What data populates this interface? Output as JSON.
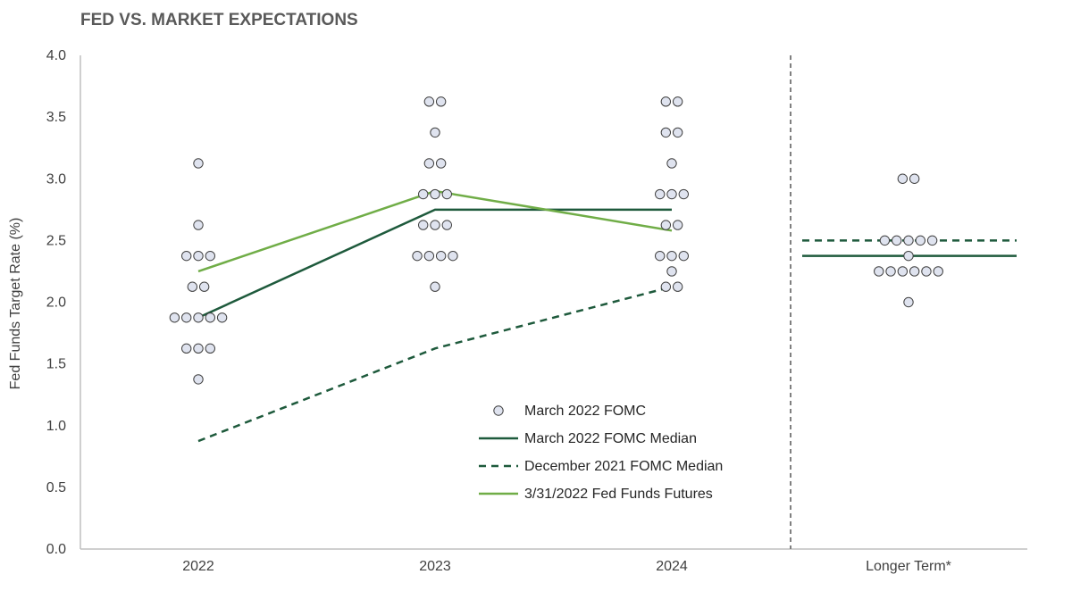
{
  "chart_data": {
    "type": "scatter",
    "title": "FED VS. MARKET EXPECTATIONS",
    "ylabel": "Fed Funds Target Rate (%)",
    "ylim": [
      0,
      4
    ],
    "yticks": [
      "0.0",
      "0.5",
      "1.0",
      "1.5",
      "2.0",
      "2.5",
      "3.0",
      "3.5",
      "4.0"
    ],
    "categories": [
      "2022",
      "2023",
      "2024",
      "Longer Term*"
    ],
    "grid": false,
    "legend": "inside-center",
    "dots": {
      "name": "March 2022 FOMC",
      "points": [
        {
          "x": "2022",
          "offset": 0,
          "y": 3.125
        },
        {
          "x": "2022",
          "offset": 0,
          "y": 2.625
        },
        {
          "x": "2022",
          "offset": -2,
          "y": 2.375
        },
        {
          "x": "2022",
          "offset": 0,
          "y": 2.375
        },
        {
          "x": "2022",
          "offset": 2,
          "y": 2.375
        },
        {
          "x": "2022",
          "offset": -1,
          "y": 2.125
        },
        {
          "x": "2022",
          "offset": 1,
          "y": 2.125
        },
        {
          "x": "2022",
          "offset": -4,
          "y": 1.875
        },
        {
          "x": "2022",
          "offset": -2,
          "y": 1.875
        },
        {
          "x": "2022",
          "offset": 0,
          "y": 1.875
        },
        {
          "x": "2022",
          "offset": 2,
          "y": 1.875
        },
        {
          "x": "2022",
          "offset": 4,
          "y": 1.875
        },
        {
          "x": "2022",
          "offset": -2,
          "y": 1.625
        },
        {
          "x": "2022",
          "offset": 0,
          "y": 1.625
        },
        {
          "x": "2022",
          "offset": 2,
          "y": 1.625
        },
        {
          "x": "2022",
          "offset": 0,
          "y": 1.375
        },
        {
          "x": "2023",
          "offset": -1,
          "y": 3.625
        },
        {
          "x": "2023",
          "offset": 1,
          "y": 3.625
        },
        {
          "x": "2023",
          "offset": 0,
          "y": 3.375
        },
        {
          "x": "2023",
          "offset": -1,
          "y": 3.125
        },
        {
          "x": "2023",
          "offset": 1,
          "y": 3.125
        },
        {
          "x": "2023",
          "offset": -2,
          "y": 2.875
        },
        {
          "x": "2023",
          "offset": 0,
          "y": 2.875
        },
        {
          "x": "2023",
          "offset": 2,
          "y": 2.875
        },
        {
          "x": "2023",
          "offset": -2,
          "y": 2.625
        },
        {
          "x": "2023",
          "offset": 0,
          "y": 2.625
        },
        {
          "x": "2023",
          "offset": 2,
          "y": 2.625
        },
        {
          "x": "2023",
          "offset": -3,
          "y": 2.375
        },
        {
          "x": "2023",
          "offset": -1,
          "y": 2.375
        },
        {
          "x": "2023",
          "offset": 1,
          "y": 2.375
        },
        {
          "x": "2023",
          "offset": 3,
          "y": 2.375
        },
        {
          "x": "2023",
          "offset": 0,
          "y": 2.125
        },
        {
          "x": "2024",
          "offset": -1,
          "y": 3.625
        },
        {
          "x": "2024",
          "offset": 1,
          "y": 3.625
        },
        {
          "x": "2024",
          "offset": -1,
          "y": 3.375
        },
        {
          "x": "2024",
          "offset": 1,
          "y": 3.375
        },
        {
          "x": "2024",
          "offset": 0,
          "y": 3.125
        },
        {
          "x": "2024",
          "offset": -2,
          "y": 2.875
        },
        {
          "x": "2024",
          "offset": 0,
          "y": 2.875
        },
        {
          "x": "2024",
          "offset": 2,
          "y": 2.875
        },
        {
          "x": "2024",
          "offset": -1,
          "y": 2.625
        },
        {
          "x": "2024",
          "offset": 1,
          "y": 2.625
        },
        {
          "x": "2024",
          "offset": -2,
          "y": 2.375
        },
        {
          "x": "2024",
          "offset": 0,
          "y": 2.375
        },
        {
          "x": "2024",
          "offset": 2,
          "y": 2.375
        },
        {
          "x": "2024",
          "offset": 0,
          "y": 2.25
        },
        {
          "x": "2024",
          "offset": -1,
          "y": 2.125
        },
        {
          "x": "2024",
          "offset": 1,
          "y": 2.125
        },
        {
          "x": "Longer Term*",
          "offset": -1,
          "y": 3.0
        },
        {
          "x": "Longer Term*",
          "offset": 1,
          "y": 3.0
        },
        {
          "x": "Longer Term*",
          "offset": -4,
          "y": 2.5
        },
        {
          "x": "Longer Term*",
          "offset": -2,
          "y": 2.5
        },
        {
          "x": "Longer Term*",
          "offset": 0,
          "y": 2.5
        },
        {
          "x": "Longer Term*",
          "offset": 2,
          "y": 2.5
        },
        {
          "x": "Longer Term*",
          "offset": 4,
          "y": 2.5
        },
        {
          "x": "Longer Term*",
          "offset": 0,
          "y": 2.375
        },
        {
          "x": "Longer Term*",
          "offset": -5,
          "y": 2.25
        },
        {
          "x": "Longer Term*",
          "offset": -3,
          "y": 2.25
        },
        {
          "x": "Longer Term*",
          "offset": -1,
          "y": 2.25
        },
        {
          "x": "Longer Term*",
          "offset": 1,
          "y": 2.25
        },
        {
          "x": "Longer Term*",
          "offset": 3,
          "y": 2.25
        },
        {
          "x": "Longer Term*",
          "offset": 5,
          "y": 2.25
        },
        {
          "x": "Longer Term*",
          "offset": 0,
          "y": 2.0
        }
      ]
    },
    "series": [
      {
        "name": "March 2022 FOMC Median",
        "style": "solid",
        "color": "#1e5a3c",
        "points": [
          {
            "x": "2022",
            "y": 1.875
          },
          {
            "x": "2023",
            "y": 2.75
          },
          {
            "x": "2024",
            "y": 2.75
          }
        ]
      },
      {
        "name": "December 2021 FOMC Median",
        "style": "dashed",
        "color": "#1e5a3c",
        "points": [
          {
            "x": "2022",
            "y": 0.875
          },
          {
            "x": "2023",
            "y": 1.625
          },
          {
            "x": "2024",
            "y": 2.125
          }
        ]
      },
      {
        "name": "3/31/2022 Fed Funds Futures",
        "style": "solid",
        "color": "#70ad47",
        "points": [
          {
            "x": "2022",
            "y": 2.25
          },
          {
            "x": "2023",
            "y": 2.9
          },
          {
            "x": "2024",
            "y": 2.58
          }
        ]
      }
    ],
    "longer_term_lines": [
      {
        "name": "March 2022 FOMC Median",
        "y": 2.375
      },
      {
        "name": "December 2021 FOMC Median",
        "y": 2.5
      }
    ]
  },
  "colors": {
    "dot_fill": "#dfe3ef",
    "dot_stroke": "#404040",
    "axis": "#bfbfbf",
    "divider": "#808080"
  }
}
